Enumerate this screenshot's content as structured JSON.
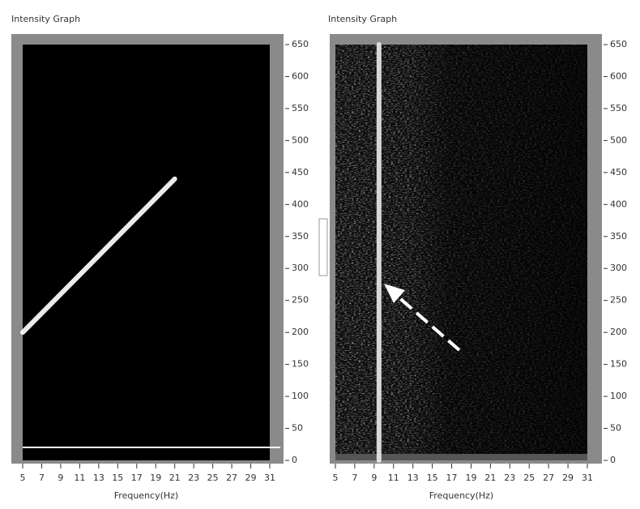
{
  "chart_data": [
    {
      "type": "line",
      "title": "Intensity Graph",
      "x_label": "Frequency(Hz)",
      "x": [
        5,
        21
      ],
      "values": [
        200,
        440
      ],
      "color": "#ffffff",
      "xlim": [
        5,
        31
      ],
      "xticks": [
        5,
        7,
        9,
        11,
        13,
        15,
        17,
        19,
        21,
        23,
        25,
        27,
        29,
        31
      ],
      "ylim": [
        0,
        650
      ],
      "yticks": [
        0,
        50,
        100,
        150,
        200,
        250,
        300,
        350,
        400,
        450,
        500,
        550,
        600,
        650
      ]
    },
    {
      "type": "line",
      "title": "Intensity Graph",
      "x_label": "Frequency(Hz)",
      "x": [
        9.5,
        9.5
      ],
      "values": [
        0,
        650
      ],
      "color": "#e8e8e8",
      "xlim": [
        5,
        31
      ],
      "xticks": [
        5,
        7,
        9,
        11,
        13,
        15,
        17,
        19,
        21,
        23,
        25,
        27,
        29,
        31
      ],
      "ylim": [
        0,
        650
      ],
      "yticks": [
        0,
        50,
        100,
        150,
        200,
        250,
        300,
        350,
        400,
        450,
        500,
        550,
        600,
        650
      ]
    }
  ]
}
